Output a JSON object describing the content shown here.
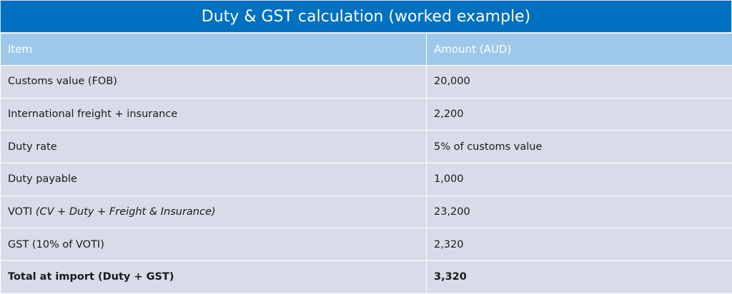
{
  "table": {
    "title": "Duty & GST calculation (worked example)",
    "headers": [
      "Item",
      "Amount (AUD)"
    ],
    "rows": [
      {
        "item": "Customs value (FOB)",
        "item_note": "",
        "amount": "20,000"
      },
      {
        "item": "International freight + insurance",
        "item_note": "",
        "amount": "2,200"
      },
      {
        "item": "Duty rate",
        "item_note": "",
        "amount": "5% of customs value"
      },
      {
        "item": "Duty payable",
        "item_note": "",
        "amount": "1,000"
      },
      {
        "item": "VOTI",
        "item_note": "(CV + Duty + Freight & Insurance)",
        "amount": "23,200"
      },
      {
        "item": "GST (10% of VOTI)",
        "item_note": "",
        "amount": "2,320"
      },
      {
        "item": "Total at import (Duty + GST)",
        "item_note": "",
        "amount": "3,320"
      }
    ]
  },
  "colors": {
    "title_bg": "#0070c0",
    "header_bg": "#9dc8ea",
    "row_bg": "#d9dce8"
  }
}
